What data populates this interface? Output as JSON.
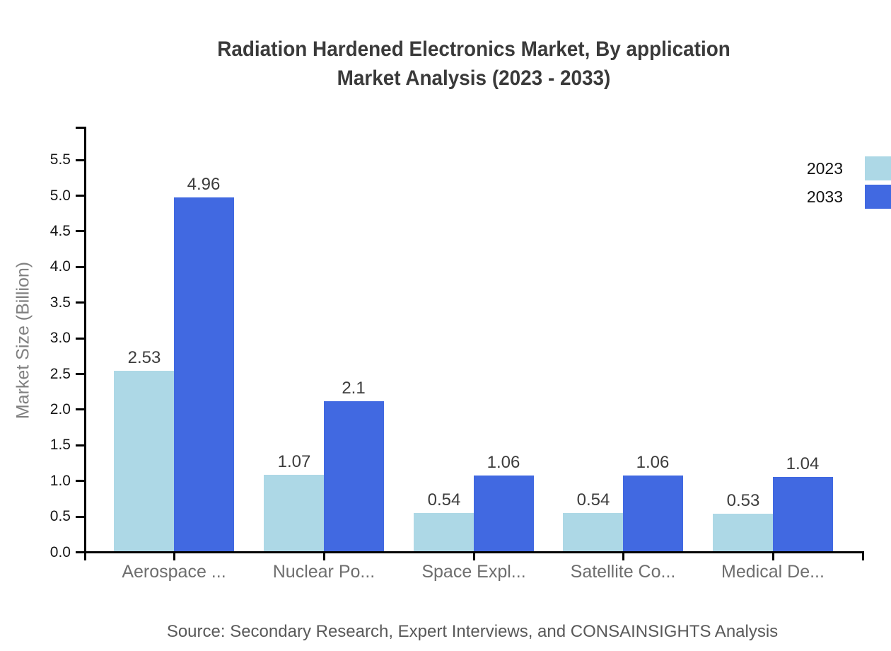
{
  "title": {
    "line1": "Radiation Hardened Electronics Market, By application",
    "line2": "Market Analysis (2023 - 2033)"
  },
  "source_note": "Source: Secondary Research, Expert Interviews, and CONSAINSIGHTS Analysis",
  "chart_data": {
    "type": "bar",
    "title": "Radiation Hardened Electronics Market, By application Market Analysis (2023 - 2033)",
    "categories": [
      "Aerospace ...",
      "Nuclear Po...",
      "Space Expl...",
      "Satellite Co...",
      "Medical De..."
    ],
    "series": [
      {
        "name": "2023",
        "color": "#ADD8E6",
        "values": [
          2.53,
          1.07,
          0.54,
          0.54,
          0.53
        ],
        "labels": [
          "2.53",
          "1.07",
          "0.54",
          "0.54",
          "0.53"
        ]
      },
      {
        "name": "2033",
        "color": "#4169E1",
        "values": [
          4.96,
          2.1,
          1.06,
          1.06,
          1.04
        ],
        "labels": [
          "4.96",
          "2.1",
          "1.06",
          "1.06",
          "1.04"
        ]
      }
    ],
    "xlabel": "",
    "ylabel": "Market Size (Billion)",
    "ylim": [
      0,
      5.75
    ],
    "ytick_labels": [
      "0.0",
      "0.5",
      "1.0",
      "1.5",
      "2.0",
      "2.5",
      "3.0",
      "3.5",
      "4.0",
      "4.5",
      "5.0",
      "5.5"
    ],
    "grid": false,
    "legend_position": "top-right",
    "value_labels_shown": true,
    "axis_color": "#000000"
  }
}
